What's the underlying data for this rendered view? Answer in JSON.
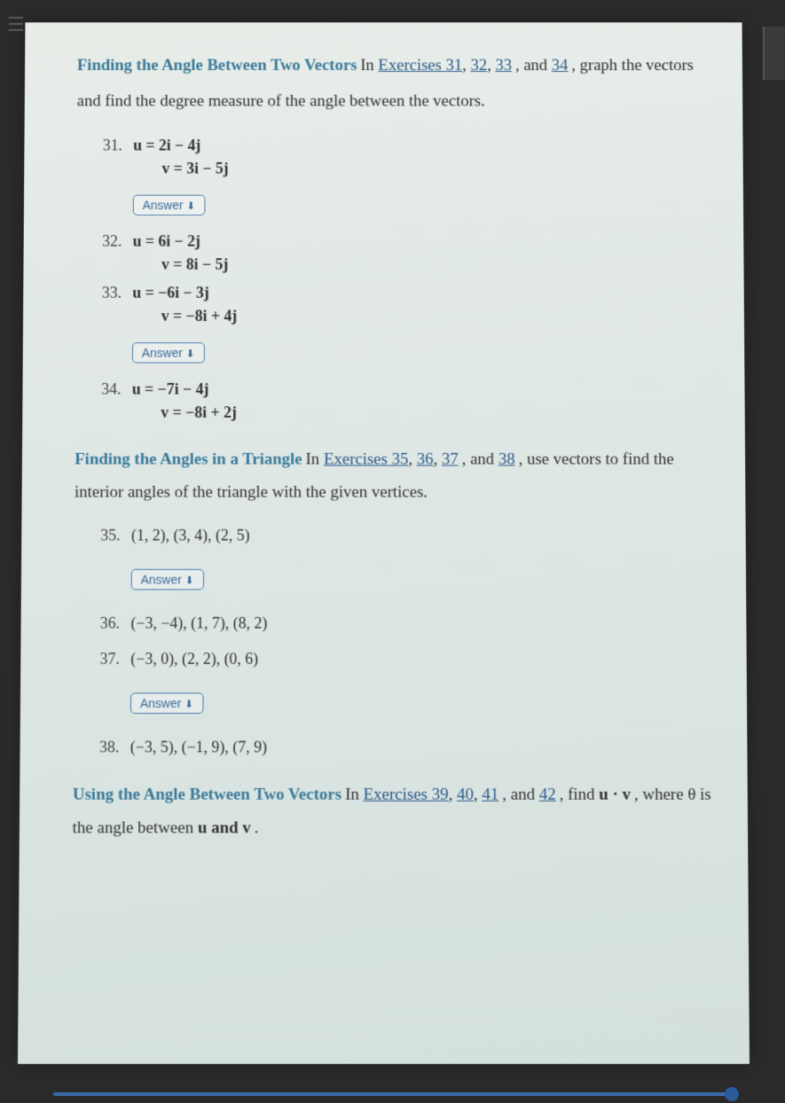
{
  "menuIcon": "☰",
  "section1": {
    "title": "Finding the Angle Between Two Vectors",
    "textPrefix": "  In ",
    "links": [
      "Exercises 31",
      "32",
      "33"
    ],
    "textMid": ", and ",
    "link4": "34",
    "textSuffix": ", graph the vectors and find the degree measure of the angle between the vectors."
  },
  "exercises1": [
    {
      "num": "31.",
      "line1": "u = 2i − 4j",
      "line2": "v = 3i − 5j",
      "hasAnswer": true
    },
    {
      "num": "32.",
      "line1": "u = 6i − 2j",
      "line2": "v = 8i − 5j",
      "hasAnswer": false
    },
    {
      "num": "33.",
      "line1": "u = −6i − 3j",
      "line2": "v = −8i + 4j",
      "hasAnswer": true
    },
    {
      "num": "34.",
      "line1": "u = −7i − 4j",
      "line2": "v = −8i + 2j",
      "hasAnswer": false
    }
  ],
  "section2": {
    "title": "Finding the Angles in a Triangle",
    "textPrefix": "  In ",
    "links": [
      "Exercises 35",
      "36",
      "37"
    ],
    "textMid": ", and ",
    "link4": "38",
    "textSuffix": ", use vectors to find the interior angles of the triangle with the given vertices."
  },
  "exercises2": [
    {
      "num": "35.",
      "line1": "(1, 2), (3, 4), (2, 5)",
      "hasAnswer": true
    },
    {
      "num": "36.",
      "line1": "(−3, −4), (1, 7), (8, 2)",
      "hasAnswer": false
    },
    {
      "num": "37.",
      "line1": "(−3, 0), (2, 2), (0, 6)",
      "hasAnswer": true
    },
    {
      "num": "38.",
      "line1": "(−3, 5), (−1, 9), (7, 9)",
      "hasAnswer": false
    }
  ],
  "section3": {
    "title": "Using the Angle Between Two Vectors",
    "textPrefix": "  In ",
    "links": [
      "Exercises 39",
      "40",
      "41"
    ],
    "textMid": ", and ",
    "link4": "42",
    "textSuffix1": ", find ",
    "formula": "u · v",
    "textSuffix2": ", where θ is the angle between ",
    "uv": "u and v",
    "period": "."
  },
  "answerLabel": "Answer ",
  "answerArrow": "⬇"
}
